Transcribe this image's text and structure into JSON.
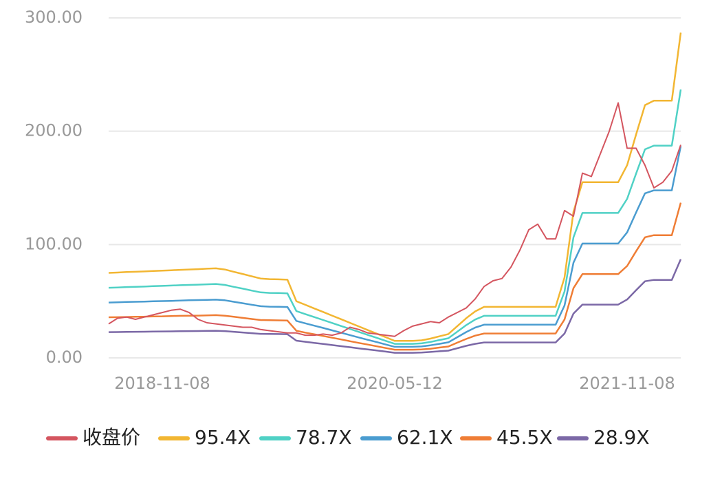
{
  "chart_data": {
    "type": "line",
    "categories": [
      null,
      null,
      null,
      null,
      null,
      null,
      "2018-11-08",
      null,
      null,
      null,
      null,
      null,
      null,
      null,
      null,
      null,
      null,
      null,
      null,
      null,
      null,
      null,
      null,
      null,
      null,
      null,
      null,
      null,
      null,
      null,
      null,
      null,
      "2020-05-12",
      null,
      null,
      null,
      null,
      null,
      null,
      null,
      null,
      null,
      null,
      null,
      null,
      null,
      null,
      null,
      null,
      null,
      null,
      null,
      null,
      null,
      null,
      null,
      null,
      null,
      "2021-11-08",
      null,
      null,
      null,
      null,
      null,
      null
    ],
    "ylim": [
      0,
      300
    ],
    "yticks": [
      {
        "value": 0,
        "label": "0.00"
      },
      {
        "value": 100,
        "label": "100.00"
      },
      {
        "value": 200,
        "label": "200.00"
      },
      {
        "value": 300,
        "label": "300.00"
      }
    ],
    "grid": true,
    "legend": "bottom",
    "series": [
      {
        "name": "收盘价",
        "color": "#d4555f",
        "values": [
          30,
          35,
          36,
          34,
          36,
          38,
          40,
          42,
          43,
          40,
          34,
          31,
          30,
          29,
          28,
          27,
          27,
          25,
          24,
          23,
          22,
          22,
          20,
          20,
          21,
          20,
          22,
          27,
          25,
          22,
          21,
          20,
          19,
          24,
          28,
          30,
          32,
          31,
          36,
          40,
          44,
          52,
          63,
          68,
          70,
          80,
          95,
          113,
          118,
          105,
          105,
          130,
          125,
          163,
          160,
          180,
          200,
          225,
          185,
          185,
          170,
          150,
          155,
          165,
          188
        ]
      },
      {
        "name": "95.4X",
        "color": "#f2b632",
        "values": [
          75,
          75.3,
          75.7,
          76,
          76.3,
          76.7,
          77,
          77.3,
          77.7,
          78,
          78.3,
          78.7,
          79,
          78,
          76,
          74,
          72,
          70,
          69.5,
          69.3,
          69,
          50,
          46.8,
          43.6,
          40.5,
          37.3,
          34.1,
          30.9,
          27.7,
          24.5,
          21.4,
          18.2,
          15,
          15,
          15,
          15.5,
          17,
          19,
          21,
          28,
          35,
          41,
          45,
          45,
          45,
          45,
          45,
          45,
          45,
          45,
          45,
          71,
          129,
          155,
          155,
          155,
          155,
          155,
          170,
          197,
          223,
          227,
          227,
          227,
          287
        ]
      },
      {
        "name": "78.7X",
        "color": "#4fd1c5",
        "values": [
          61.9,
          62.1,
          62.5,
          62.7,
          62.9,
          63.3,
          63.5,
          63.8,
          64.1,
          64.4,
          64.6,
          64.9,
          65.2,
          64.4,
          62.7,
          61.1,
          59.4,
          57.8,
          57.3,
          57.2,
          56.9,
          41.3,
          38.6,
          36,
          33.4,
          30.8,
          28.1,
          25.5,
          22.9,
          20.2,
          17.7,
          15,
          12.4,
          12.4,
          12.4,
          12.8,
          14,
          15.7,
          17.3,
          23.1,
          28.9,
          33.8,
          37.1,
          37.1,
          37.1,
          37.1,
          37.1,
          37.1,
          37.1,
          37.1,
          37.1,
          58.6,
          106.4,
          127.9,
          127.9,
          127.9,
          127.9,
          127.9,
          140.3,
          162.5,
          184,
          187.3,
          187.3,
          187.3,
          236.8
        ]
      },
      {
        "name": "62.1X",
        "color": "#4a9cd0",
        "values": [
          48.8,
          49,
          49.3,
          49.5,
          49.7,
          49.9,
          50.1,
          50.3,
          50.6,
          50.8,
          51,
          51.2,
          51.4,
          50.8,
          49.5,
          48.2,
          46.9,
          45.6,
          45.2,
          45.1,
          44.9,
          32.6,
          30.5,
          28.4,
          26.4,
          24.3,
          22.2,
          20.1,
          18,
          15.9,
          13.9,
          11.8,
          9.8,
          9.8,
          9.8,
          10.1,
          11.1,
          12.4,
          13.7,
          18.2,
          22.8,
          26.7,
          29.3,
          29.3,
          29.3,
          29.3,
          29.3,
          29.3,
          29.3,
          29.3,
          29.3,
          46.2,
          84,
          100.9,
          100.9,
          100.9,
          100.9,
          100.9,
          110.7,
          128.2,
          145.2,
          147.8,
          147.8,
          147.8,
          186.8
        ]
      },
      {
        "name": "45.5X",
        "color": "#ef7d35",
        "values": [
          35.8,
          35.9,
          36.1,
          36.3,
          36.4,
          36.6,
          36.7,
          36.9,
          37.1,
          37.2,
          37.3,
          37.5,
          37.7,
          37.2,
          36.3,
          35.3,
          34.3,
          33.4,
          33.2,
          33.1,
          32.9,
          23.9,
          22.3,
          20.8,
          19.3,
          17.8,
          16.3,
          14.7,
          13.2,
          11.7,
          10.2,
          8.7,
          7.2,
          7.2,
          7.2,
          7.4,
          8.1,
          9.1,
          10,
          13.4,
          16.7,
          19.6,
          21.5,
          21.5,
          21.5,
          21.5,
          21.5,
          21.5,
          21.5,
          21.5,
          21.5,
          33.9,
          61.5,
          73.9,
          73.9,
          73.9,
          73.9,
          73.9,
          81.1,
          94,
          106.4,
          108.3,
          108.3,
          108.3,
          136.9
        ]
      },
      {
        "name": "28.9X",
        "color": "#7b68a6",
        "values": [
          22.7,
          22.8,
          22.9,
          23,
          23.1,
          23.2,
          23.3,
          23.4,
          23.5,
          23.6,
          23.7,
          23.8,
          23.9,
          23.6,
          23,
          22.4,
          21.8,
          21.2,
          21.1,
          21,
          20.9,
          15.2,
          14.2,
          13.2,
          12.3,
          11.3,
          10.3,
          9.4,
          8.4,
          7.4,
          6.5,
          5.5,
          4.5,
          4.5,
          4.5,
          4.7,
          5.2,
          5.8,
          6.4,
          8.5,
          10.6,
          12.4,
          13.6,
          13.6,
          13.6,
          13.6,
          13.6,
          13.6,
          13.6,
          13.6,
          13.6,
          21.5,
          39.1,
          47,
          47,
          47,
          47,
          47,
          51.5,
          59.7,
          67.6,
          68.8,
          68.8,
          68.8,
          87
        ]
      }
    ]
  }
}
